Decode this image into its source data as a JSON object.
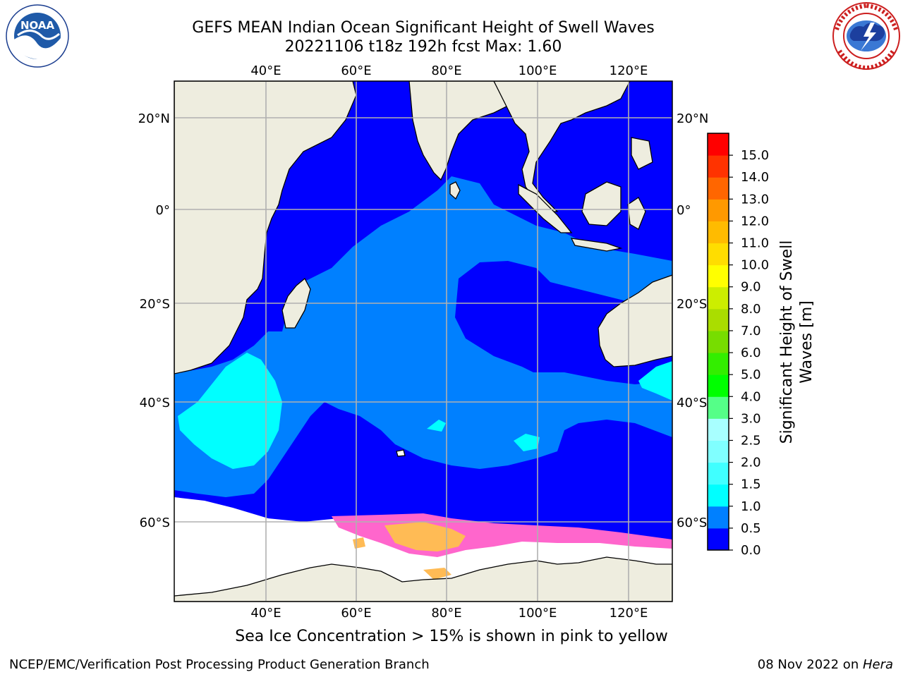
{
  "title": {
    "line1": "GEFS MEAN Indian Ocean Significant Height of Swell Waves",
    "line2": "20221106 t18z 192h fcst   Max: 1.60"
  },
  "map": {
    "lon_ticks": [
      "40°E",
      "60°E",
      "80°E",
      "100°E",
      "120°E"
    ],
    "lat_ticks": [
      "20°N",
      "0°",
      "20°S",
      "40°S",
      "60°S"
    ],
    "colors": {
      "land": "#eeeddf",
      "ocean_low": "#0000ff",
      "ocean_mid": "#0080ff",
      "ocean_high": "#00ffff",
      "sea_ice": "#ffffff",
      "ice_pink": "#ff66cc",
      "ice_yellow": "#ffbb55",
      "grid": "#b0b0b0"
    }
  },
  "colorbar": {
    "label": "Significant Height of Swell Waves [m]",
    "label_line1": "Significant Height of Swell",
    "label_line2": "Waves [m]",
    "ticks": [
      "0.0",
      "0.5",
      "1.0",
      "1.5",
      "2.0",
      "2.5",
      "3.0",
      "4.0",
      "5.0",
      "6.0",
      "7.0",
      "8.0",
      "9.0",
      "10.0",
      "11.0",
      "12.0",
      "13.0",
      "14.0",
      "15.0"
    ],
    "colors": [
      "#0000ff",
      "#0080ff",
      "#00ffff",
      "#40ffff",
      "#80ffff",
      "#a8ffff",
      "#55ff88",
      "#00ff00",
      "#33ee00",
      "#77dd00",
      "#aadd00",
      "#ccee00",
      "#ffff00",
      "#ffdd00",
      "#ffbb00",
      "#ff9900",
      "#ff6600",
      "#ff3300",
      "#ff0000"
    ]
  },
  "caption": "Sea Ice Concentration > 15% is shown in pink to yellow",
  "footer": {
    "left": "NCEP/EMC/Verification Post Processing Product Generation Branch",
    "date": "08 Nov 2022 on ",
    "host": "Hera"
  },
  "logos": {
    "noaa_text": "NOAA",
    "noaa_ring_text": "NATIONAL OCEANIC AND ATMOSPHERIC ADMINISTRATION · U.S. DEPARTMENT OF COMMERCE",
    "nws_ring_text": "NATIONAL WEATHER SERVICE"
  }
}
